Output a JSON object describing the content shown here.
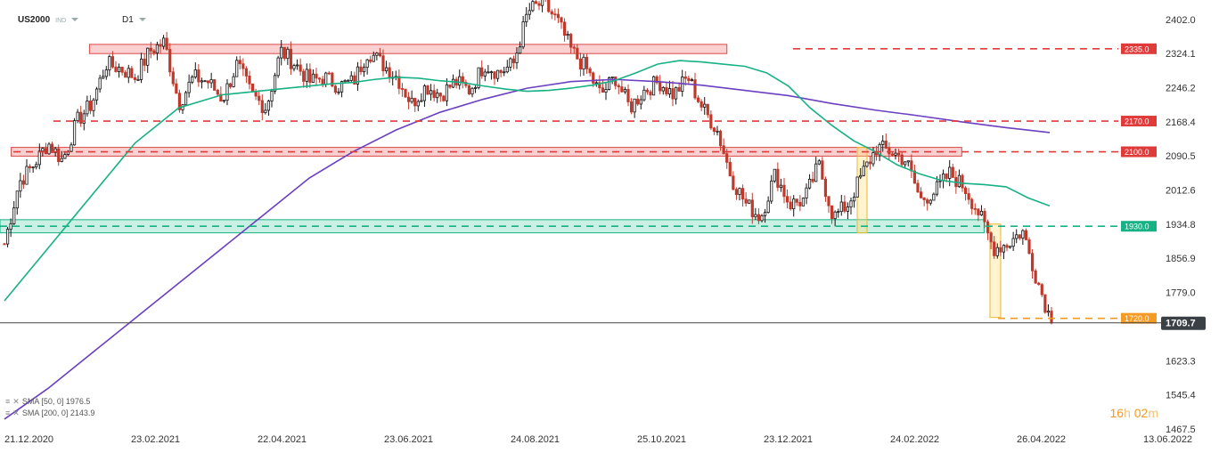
{
  "header": {
    "symbol": "US2000",
    "market": "IND",
    "timeframe": "D1"
  },
  "indicators": [
    {
      "label": "SMA [50, 0]",
      "value": "1976.5",
      "color": "#16b184"
    },
    {
      "label": "SMA [200, 0]",
      "value": "2143.9",
      "color": "#6a3fc1"
    }
  ],
  "timer": {
    "hours": "16",
    "h": "h",
    "minutes": "02",
    "m": "m"
  },
  "chart_data": {
    "type": "candlestick",
    "ylim": [
      1467.5,
      2430
    ],
    "y_ticks": [
      "2402.0",
      "2324.1",
      "2246.2",
      "2168.4",
      "2090.5",
      "2012.6",
      "1934.8",
      "1856.9",
      "1779.0",
      "1623.3",
      "1545.4",
      "1467.5"
    ],
    "x_ticks": [
      "21.12.2020",
      "23.02.2021",
      "22.04.2021",
      "23.06.2021",
      "24.08.2021",
      "25.10.2021",
      "23.12.2021",
      "24.02.2022",
      "26.04.2022",
      "13.06.2022"
    ],
    "current_price": "1709.7",
    "levels": [
      {
        "label": "2335.0",
        "value": 2335.0,
        "color": "#e03b3b"
      },
      {
        "label": "2170.0",
        "value": 2170.0,
        "color": "#e03b3b"
      },
      {
        "label": "2100.0",
        "value": 2100.0,
        "color": "#e03b3b"
      },
      {
        "label": "1930.0",
        "value": 1930.0,
        "color": "#16b184"
      },
      {
        "label": "1720.0",
        "value": 1720.0,
        "color": "#f59a23"
      }
    ],
    "zones": [
      {
        "from": 2324,
        "to": 2345,
        "x0": 0.08,
        "x1": 0.65,
        "color": "red"
      },
      {
        "from": 2090,
        "to": 2110,
        "x0": 0.01,
        "x1": 0.86,
        "color": "red"
      },
      {
        "from": 1915,
        "to": 1945,
        "x0": 0.0,
        "x1": 0.88,
        "color": "green"
      }
    ],
    "closes_key": [
      1890,
      2030,
      2070,
      2120,
      2080,
      2170,
      2210,
      2300,
      2290,
      2270,
      2330,
      2350,
      2210,
      2270,
      2260,
      2220,
      2300,
      2230,
      2200,
      2330,
      2300,
      2260,
      2270,
      2250,
      2260,
      2330,
      2300,
      2270,
      2210,
      2250,
      2230,
      2260,
      2240,
      2300,
      2280,
      2300,
      2420,
      2440,
      2400,
      2330,
      2290,
      2230,
      2270,
      2200,
      2240,
      2260,
      2230,
      2270,
      2200,
      2150,
      2040,
      1980,
      1950,
      2050,
      1980,
      1990,
      2070,
      1950,
      1980,
      2050,
      2110,
      2100,
      2080,
      1990,
      2010,
      2050,
      2020,
      1960,
      1880,
      1890,
      1920,
      1810,
      1709.7
    ],
    "sma50": [
      1760,
      1820,
      1880,
      1940,
      2000,
      2060,
      2120,
      2160,
      2200,
      2215,
      2230,
      2235,
      2240,
      2245,
      2250,
      2255,
      2258,
      2265,
      2270,
      2268,
      2262,
      2258,
      2250,
      2243,
      2238,
      2240,
      2245,
      2252,
      2262,
      2280,
      2300,
      2308,
      2305,
      2300,
      2295,
      2280,
      2250,
      2200,
      2160,
      2125,
      2100,
      2070,
      2050,
      2035,
      2028,
      2025,
      2020,
      1995,
      1976.5
    ],
    "sma200": [
      1490,
      1560,
      1640,
      1720,
      1800,
      1880,
      1960,
      2040,
      2100,
      2150,
      2190,
      2220,
      2245,
      2260,
      2265,
      2260,
      2252,
      2240,
      2228,
      2210,
      2195,
      2182,
      2168,
      2155,
      2143.9
    ]
  }
}
